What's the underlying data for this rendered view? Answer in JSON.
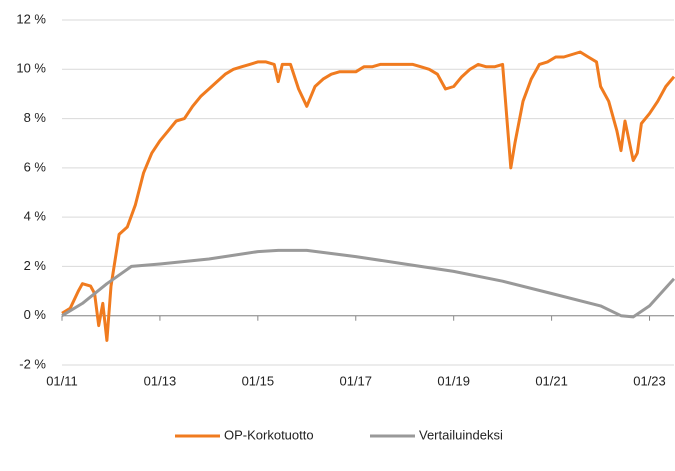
{
  "chart_data": {
    "type": "line",
    "series": [
      {
        "name": "OP-Korkotuotto",
        "color": "#f07b1f",
        "x": [
          "2011-01",
          "2011-03",
          "2011-05",
          "2011-06",
          "2011-08",
          "2011-09",
          "2011-10",
          "2011-11",
          "2011-12",
          "2012-01",
          "2012-03",
          "2012-05",
          "2012-07",
          "2012-09",
          "2012-11",
          "2013-01",
          "2013-03",
          "2013-05",
          "2013-07",
          "2013-09",
          "2013-11",
          "2014-01",
          "2014-03",
          "2014-05",
          "2014-07",
          "2014-09",
          "2014-11",
          "2015-01",
          "2015-03",
          "2015-05",
          "2015-06",
          "2015-07",
          "2015-09",
          "2015-11",
          "2016-01",
          "2016-03",
          "2016-05",
          "2016-07",
          "2016-09",
          "2016-11",
          "2017-01",
          "2017-03",
          "2017-05",
          "2017-07",
          "2017-09",
          "2017-11",
          "2018-01",
          "2018-03",
          "2018-05",
          "2018-07",
          "2018-09",
          "2018-11",
          "2019-01",
          "2019-03",
          "2019-05",
          "2019-07",
          "2019-09",
          "2019-11",
          "2020-01",
          "2020-03",
          "2020-04",
          "2020-06",
          "2020-08",
          "2020-10",
          "2020-12",
          "2021-02",
          "2021-04",
          "2021-06",
          "2021-08",
          "2021-10",
          "2021-12",
          "2022-01",
          "2022-03",
          "2022-05",
          "2022-06",
          "2022-07",
          "2022-09",
          "2022-10",
          "2022-11",
          "2023-01",
          "2023-03",
          "2023-05",
          "2023-07"
        ],
        "values": [
          0.1,
          0.3,
          1.0,
          1.3,
          1.2,
          0.9,
          -0.4,
          0.5,
          -1.0,
          1.2,
          3.3,
          3.6,
          4.5,
          5.8,
          6.6,
          7.1,
          7.5,
          7.9,
          8.0,
          8.5,
          8.9,
          9.2,
          9.5,
          9.8,
          10.0,
          10.1,
          10.2,
          10.3,
          10.3,
          10.2,
          9.5,
          10.2,
          10.2,
          9.2,
          8.5,
          9.3,
          9.6,
          9.8,
          9.9,
          9.9,
          9.9,
          10.1,
          10.1,
          10.2,
          10.2,
          10.2,
          10.2,
          10.2,
          10.1,
          10.0,
          9.8,
          9.2,
          9.3,
          9.7,
          10.0,
          10.2,
          10.1,
          10.1,
          10.2,
          6.0,
          7.0,
          8.7,
          9.6,
          10.2,
          10.3,
          10.5,
          10.5,
          10.6,
          10.7,
          10.5,
          10.3,
          9.3,
          8.7,
          7.5,
          6.7,
          7.9,
          6.3,
          6.6,
          7.8,
          8.2,
          8.7,
          9.3,
          9.7
        ]
      },
      {
        "name": "Vertailuindeksi",
        "color": "#999999",
        "x": [
          "2011-01",
          "2011-06",
          "2011-12",
          "2012-06",
          "2013-01",
          "2014-01",
          "2015-01",
          "2015-06",
          "2016-01",
          "2017-01",
          "2018-01",
          "2019-01",
          "2020-01",
          "2021-01",
          "2022-01",
          "2022-06",
          "2022-09",
          "2023-01",
          "2023-07"
        ],
        "values": [
          0.0,
          0.5,
          1.3,
          2.0,
          2.1,
          2.3,
          2.6,
          2.65,
          2.65,
          2.4,
          2.1,
          1.8,
          1.4,
          0.9,
          0.4,
          0.0,
          -0.05,
          0.4,
          1.5
        ]
      }
    ],
    "xlim": [
      "2011-01",
      "2023-07"
    ],
    "xticks": [
      {
        "value": "2011-01",
        "label": "01/11"
      },
      {
        "value": "2013-01",
        "label": "01/13"
      },
      {
        "value": "2015-01",
        "label": "01/15"
      },
      {
        "value": "2017-01",
        "label": "01/17"
      },
      {
        "value": "2019-01",
        "label": "01/19"
      },
      {
        "value": "2021-01",
        "label": "01/21"
      },
      {
        "value": "2023-01",
        "label": "01/23"
      }
    ],
    "ylim": [
      -2,
      12
    ],
    "yticks": [
      {
        "value": -2,
        "label": "-2 %"
      },
      {
        "value": 0,
        "label": "0 %"
      },
      {
        "value": 2,
        "label": "2 %"
      },
      {
        "value": 4,
        "label": "4 %"
      },
      {
        "value": 6,
        "label": "6 %"
      },
      {
        "value": 8,
        "label": "8 %"
      },
      {
        "value": 10,
        "label": "10 %"
      },
      {
        "value": 12,
        "label": "12 %"
      }
    ],
    "grid": true,
    "legend": "bottom"
  }
}
